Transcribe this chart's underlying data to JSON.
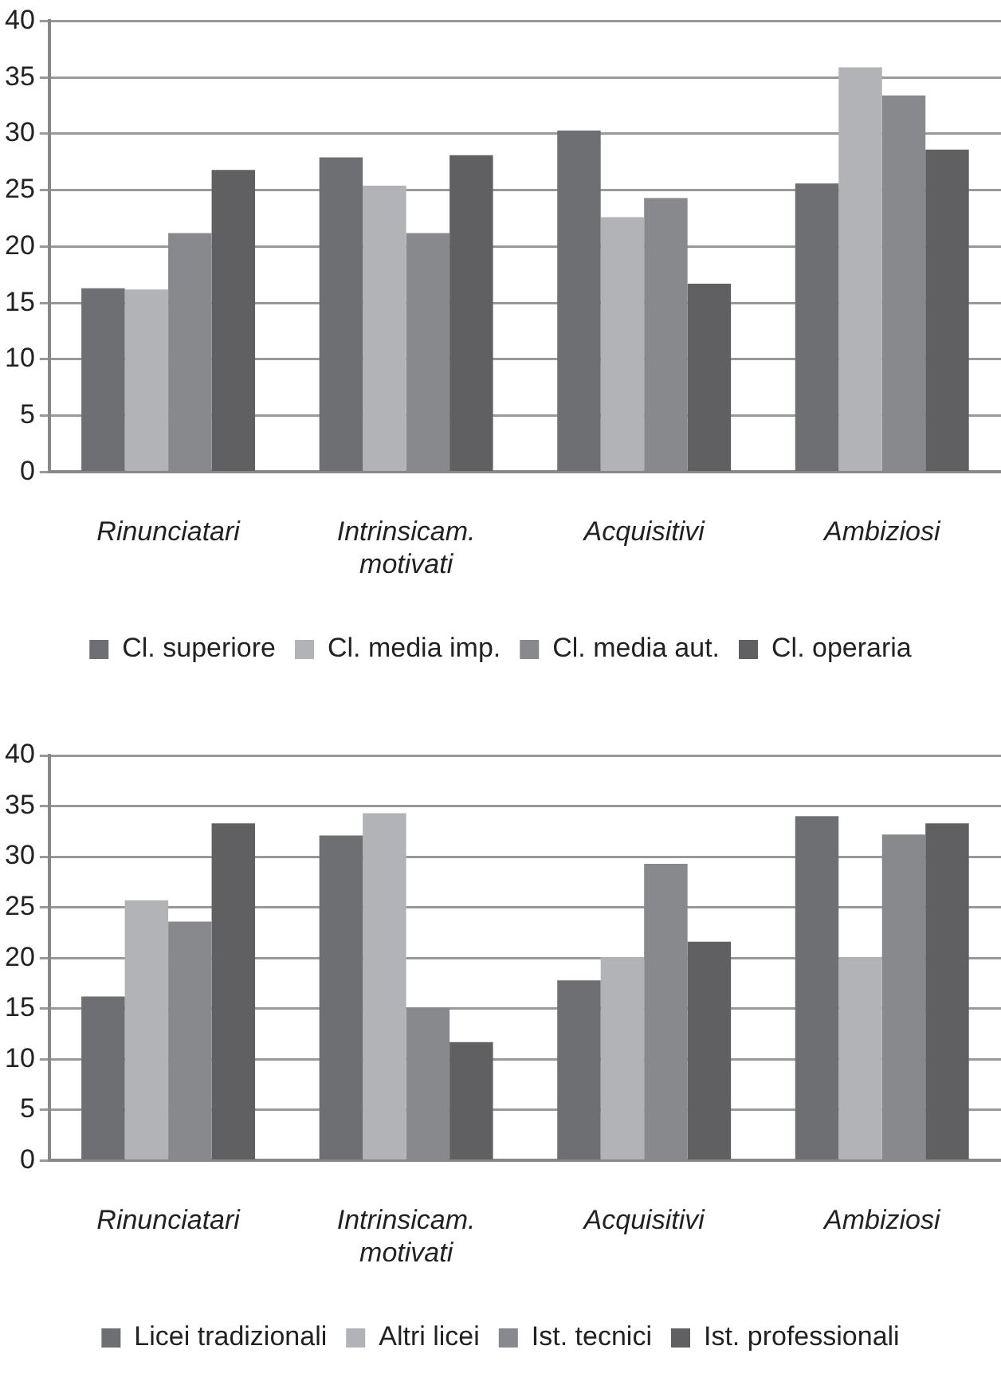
{
  "chart_data": [
    {
      "type": "bar",
      "categories": [
        "Rinunciatari",
        "Intrinsicam.\nmotivati",
        "Acquisitivi",
        "Ambiziosi"
      ],
      "series": [
        {
          "name": "Cl. superiore",
          "color": "#6e6f73",
          "values": [
            16.3,
            27.9,
            30.3,
            25.6
          ]
        },
        {
          "name": "Cl. media imp.",
          "color": "#b2b3b6",
          "values": [
            16.2,
            25.4,
            22.6,
            35.9
          ]
        },
        {
          "name": "Cl. media aut.",
          "color": "#88898d",
          "values": [
            21.2,
            21.2,
            24.3,
            33.4
          ]
        },
        {
          "name": "Cl. operaria",
          "color": "#606062",
          "values": [
            26.8,
            28.1,
            16.7,
            28.6
          ]
        }
      ],
      "ylim": [
        0,
        40
      ],
      "yticks": [
        0,
        5,
        10,
        15,
        20,
        25,
        30,
        35,
        40
      ],
      "grid": "y",
      "legend": "bottom"
    },
    {
      "type": "bar",
      "categories": [
        "Rinunciatari",
        "Intrinsicam.\nmotivati",
        "Acquisitivi",
        "Ambiziosi"
      ],
      "series": [
        {
          "name": "Licei tradizionali",
          "color": "#6e6f73",
          "values": [
            16.2,
            32.1,
            17.8,
            34.0
          ]
        },
        {
          "name": "Altri licei",
          "color": "#b2b3b6",
          "values": [
            25.7,
            34.3,
            20.1,
            20.1
          ]
        },
        {
          "name": "Ist. tecnici",
          "color": "#88898d",
          "values": [
            23.6,
            15.1,
            29.3,
            32.2
          ]
        },
        {
          "name": "Ist. professionali",
          "color": "#606062",
          "values": [
            33.3,
            11.7,
            21.6,
            33.3
          ]
        }
      ],
      "ylim": [
        0,
        40
      ],
      "yticks": [
        0,
        5,
        10,
        15,
        20,
        25,
        30,
        35,
        40
      ],
      "grid": "y",
      "legend": "bottom"
    }
  ]
}
